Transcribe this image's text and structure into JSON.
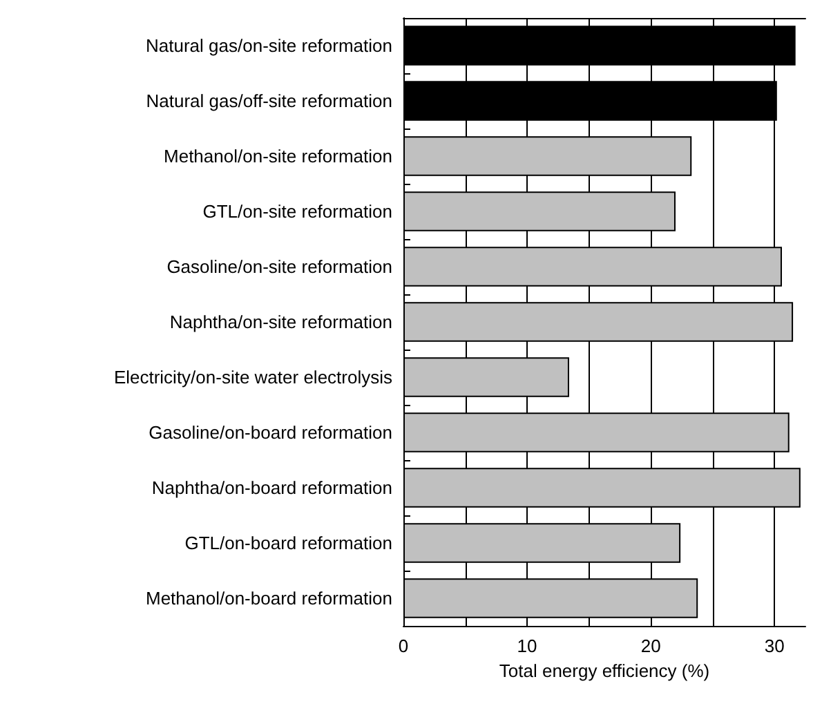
{
  "chart_data": {
    "type": "bar",
    "orientation": "horizontal",
    "xlabel": "Total energy efficiency (%)",
    "categories": [
      "Natural gas/on-site reformation",
      "Natural gas/off-site reformation",
      "Methanol/on-site reformation",
      "GTL/on-site reformation",
      "Gasoline/on-site reformation",
      "Naphtha/on-site reformation",
      "Electricity/on-site water electrolysis",
      "Gasoline/on-board reformation",
      "Naphtha/on-board reformation",
      "GTL/on-board reformation",
      "Methanol/on-board reformation"
    ],
    "values": [
      31.7,
      30.2,
      23.3,
      22.0,
      30.6,
      31.5,
      13.4,
      31.2,
      32.1,
      22.4,
      23.8
    ],
    "colors": [
      "#000000",
      "#000000",
      "#c0c0c0",
      "#c0c0c0",
      "#c0c0c0",
      "#c0c0c0",
      "#c0c0c0",
      "#c0c0c0",
      "#c0c0c0",
      "#c0c0c0",
      "#c0c0c0"
    ],
    "xlim": [
      0,
      32.5
    ],
    "xticks": [
      0,
      {
        "value": 5,
        "label": null
      },
      10,
      {
        "value": 15,
        "label": null
      },
      20,
      {
        "value": 25,
        "label": null
      },
      30
    ],
    "grid": "x"
  }
}
